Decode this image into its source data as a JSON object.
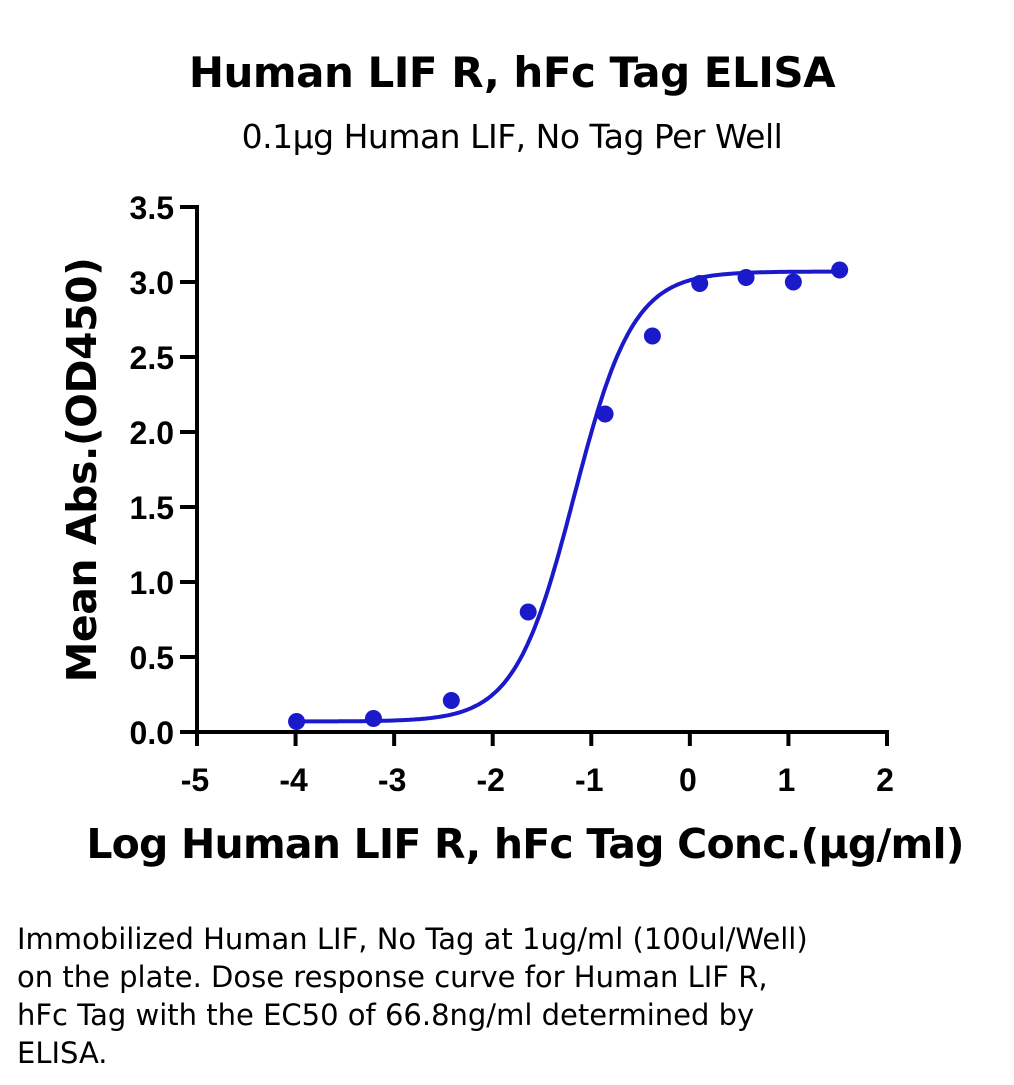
{
  "chart_data": {
    "type": "scatter",
    "title": "Human LIF R, hFc Tag ELISA",
    "subtitle": "0.1μg Human LIF, No Tag Per Well",
    "xlabel": "Log Human LIF R, hFc Tag Conc.(μg/ml)",
    "ylabel": "Mean Abs.(OD450)",
    "xlim": [
      -5,
      2
    ],
    "ylim": [
      0,
      3.5
    ],
    "x_ticks": [
      "-5",
      "-4",
      "-3",
      "-2",
      "-1",
      "0",
      "1",
      "2"
    ],
    "y_ticks": [
      "0.0",
      "0.5",
      "1.0",
      "1.5",
      "2.0",
      "2.5",
      "3.0",
      "3.5"
    ],
    "grid": false,
    "series": [
      {
        "x": [
          -3.99,
          -3.21,
          -2.42,
          -1.64,
          -0.86,
          -0.38,
          0.1,
          0.57,
          1.05,
          1.52
        ],
        "y": [
          0.07,
          0.09,
          0.21,
          0.8,
          2.12,
          2.64,
          2.99,
          3.03,
          3.0,
          3.08
        ],
        "color": "#1a1aca",
        "fit": "4PL sigmoid",
        "fit_params": {
          "bottom": 0.07,
          "top": 3.07,
          "log_ec50": -1.175,
          "hill": 1.45
        }
      }
    ],
    "annotation": [
      "Immobilized Human LIF, No Tag at 1ug/ml (100ul/Well)",
      "on the plate. Dose response curve for Human LIF R,",
      "hFc Tag with the EC50 of 66.8ng/ml determined by",
      "ELISA."
    ]
  }
}
